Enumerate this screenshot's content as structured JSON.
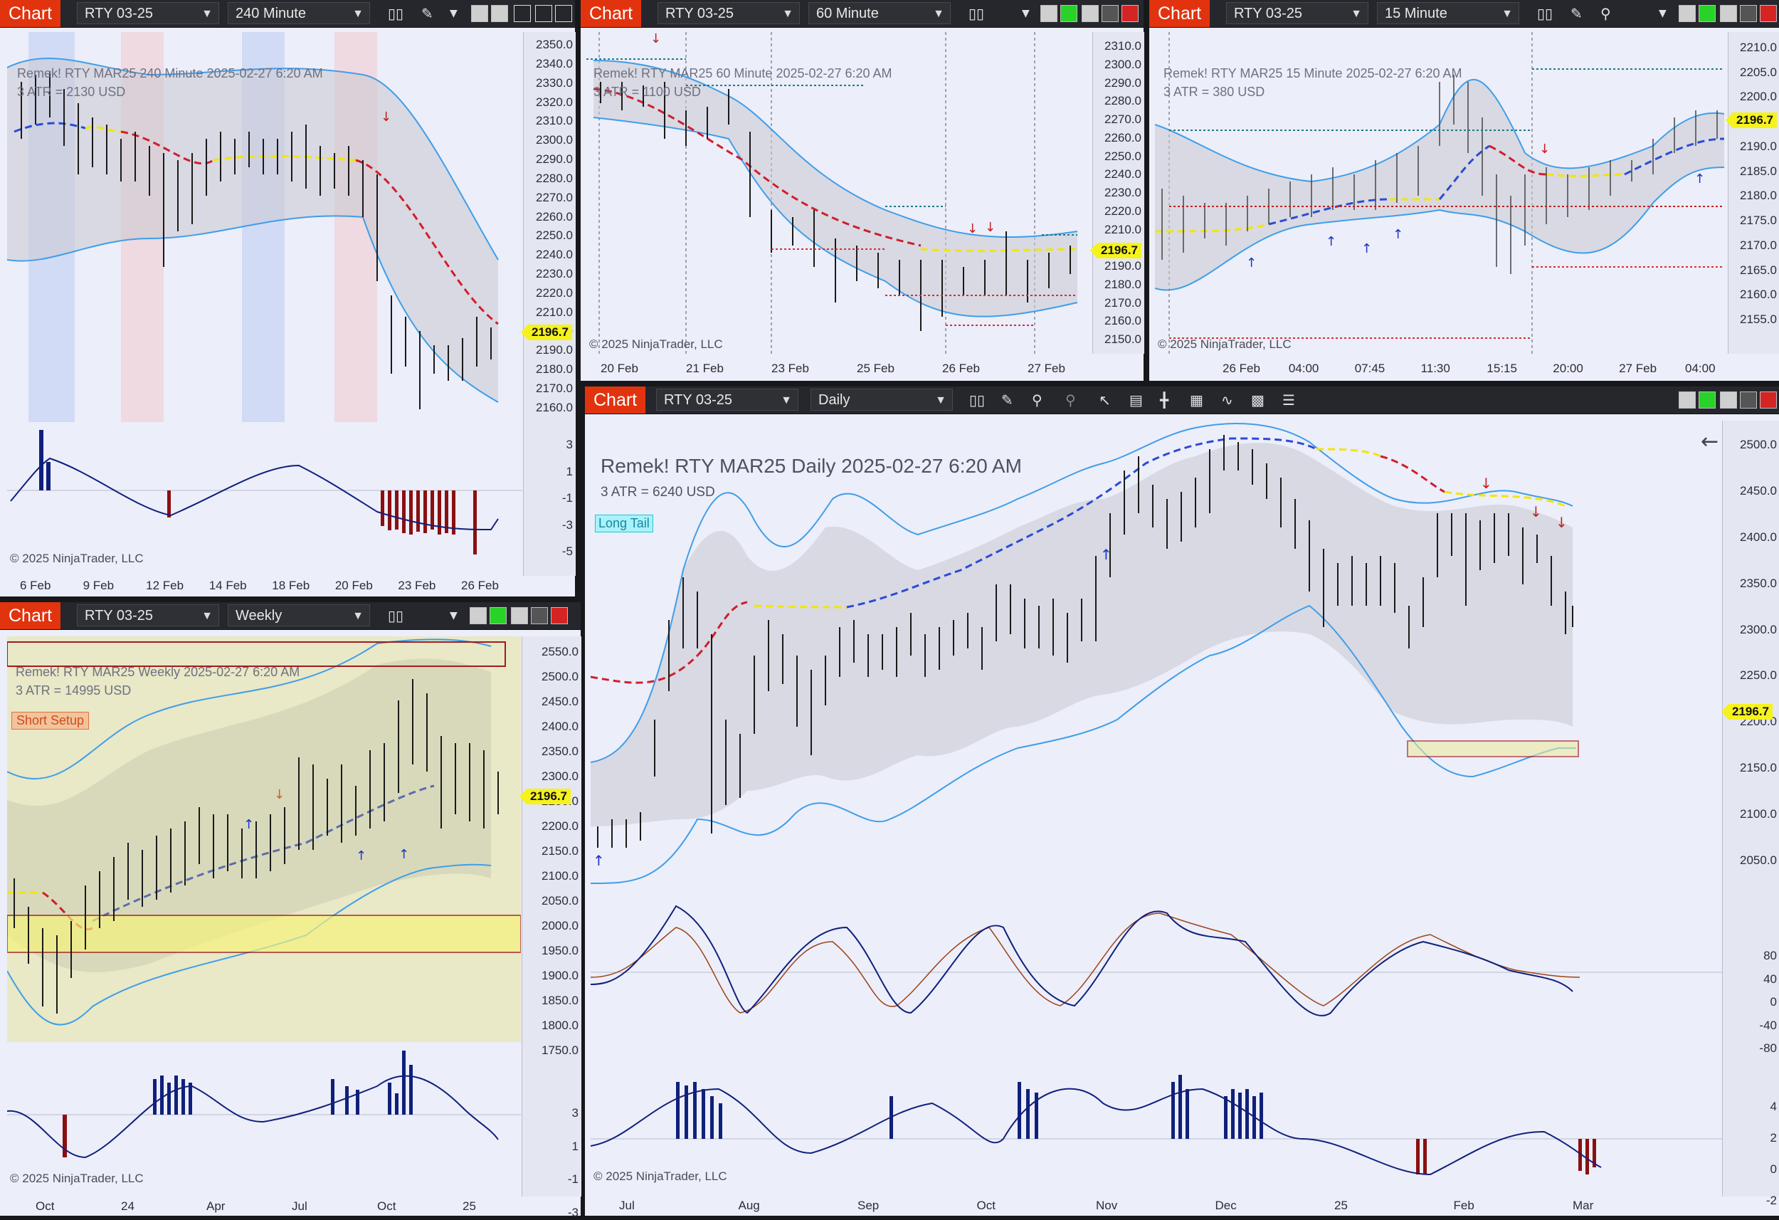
{
  "common": {
    "chart_label": "Chart",
    "instrument": "RTY 03-25",
    "copyright": "© 2025 NinjaTrader, LLC",
    "price_tag": "2196.7",
    "exit_icon": "exit-arrow-icon"
  },
  "windows": {
    "w240": {
      "timeframe": "240 Minute",
      "title": "Remek!  RTY MAR25  240 Minute  2025-02-27 6:20 AM",
      "atr": "3 ATR = 2130 USD",
      "price_ticks": [
        "2350.0",
        "2340.0",
        "2330.0",
        "2320.0",
        "2310.0",
        "2300.0",
        "2290.0",
        "2280.0",
        "2270.0",
        "2260.0",
        "2250.0",
        "2240.0",
        "2230.0",
        "2220.0",
        "2210.0",
        "2200.0",
        "2190.0",
        "2180.0",
        "2170.0",
        "2160.0"
      ],
      "osc_ticks": [
        "3",
        "1",
        "-1",
        "-3",
        "-5"
      ],
      "x_labels": [
        "6 Feb",
        "9 Feb",
        "12 Feb",
        "14 Feb",
        "18 Feb",
        "20 Feb",
        "23 Feb",
        "26 Feb"
      ]
    },
    "w60": {
      "timeframe": "60 Minute",
      "title": "Remek!  RTY MAR25  60 Minute  2025-02-27 6:20 AM",
      "atr": "3 ATR = 1100 USD",
      "price_ticks": [
        "2310.0",
        "2300.0",
        "2290.0",
        "2280.0",
        "2270.0",
        "2260.0",
        "2250.0",
        "2240.0",
        "2230.0",
        "2220.0",
        "2210.0",
        "2200.0",
        "2190.0",
        "2180.0",
        "2170.0",
        "2160.0",
        "2150.0"
      ],
      "x_labels": [
        "20 Feb",
        "21 Feb",
        "23 Feb",
        "25 Feb",
        "26 Feb",
        "27 Feb"
      ]
    },
    "w15": {
      "timeframe": "15 Minute",
      "title": "Remek!  RTY MAR25  15 Minute  2025-02-27 6:20 AM",
      "atr": "3 ATR = 380 USD",
      "price_ticks": [
        "2210.0",
        "2205.0",
        "2200.0",
        "2195.0",
        "2190.0",
        "2185.0",
        "2180.0",
        "2175.0",
        "2170.0",
        "2165.0",
        "2160.0",
        "2155.0"
      ],
      "x_labels": [
        "26 Feb",
        "04:00",
        "07:45",
        "11:30",
        "15:15",
        "20:00",
        "27 Feb",
        "04:00"
      ]
    },
    "wW": {
      "timeframe": "Weekly",
      "title": "Remek!  RTY MAR25  Weekly  2025-02-27 6:20 AM",
      "atr": "3 ATR = 14995 USD",
      "tag": "Short Setup",
      "price_ticks": [
        "2550.0",
        "2500.0",
        "2450.0",
        "2400.0",
        "2350.0",
        "2300.0",
        "2250.0",
        "2200.0",
        "2150.0",
        "2100.0",
        "2050.0",
        "2000.0",
        "1950.0",
        "1900.0",
        "1850.0",
        "1800.0",
        "1750.0"
      ],
      "osc_ticks": [
        "3",
        "1",
        "-1",
        "-3"
      ],
      "x_labels": [
        "Oct",
        "24",
        "Apr",
        "Jul",
        "Oct",
        "25"
      ]
    },
    "wD": {
      "timeframe": "Daily",
      "title": "Remek!  RTY MAR25  Daily  2025-02-27 6:20 AM",
      "atr": "3 ATR = 6240 USD",
      "tag": "Long Tail",
      "price_ticks": [
        "2500.0",
        "2450.0",
        "2400.0",
        "2350.0",
        "2300.0",
        "2250.0",
        "2200.0",
        "2150.0",
        "2100.0",
        "2050.0"
      ],
      "mid_ticks": [
        "80",
        "40",
        "0",
        "-40",
        "-80"
      ],
      "osc_ticks": [
        "4",
        "2",
        "0",
        "-2"
      ],
      "x_labels": [
        "Jul",
        "Aug",
        "Sep",
        "Oct",
        "Nov",
        "Dec",
        "25",
        "Feb",
        "Mar"
      ]
    }
  },
  "colors": {
    "up": "#1a6b2a",
    "down": "#6a1a10",
    "mid_up": "#2b4bd6",
    "mid_down": "#d11d2b",
    "mid_flat": "#f2e600",
    "band": "#3f9ee8",
    "hist_pos": "#10207a",
    "hist_neg": "#8a1010",
    "hist_neu": "#a9abb3"
  }
}
